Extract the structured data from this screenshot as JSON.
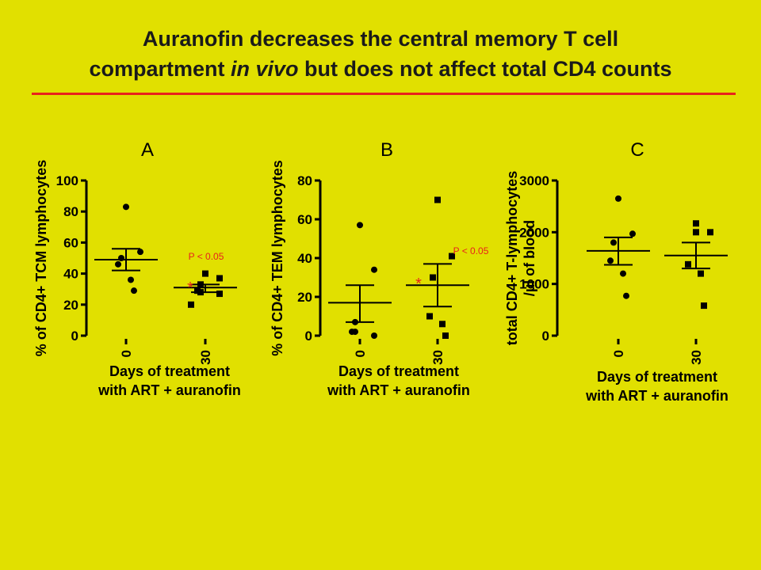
{
  "slide": {
    "title_line1": "Auranofin decreases the central memory T cell",
    "title_line2_pre": "compartment ",
    "title_line2_italic": "in vivo",
    "title_line2_post": " but does not affect total CD4 counts"
  },
  "colors": {
    "background": "#e1e000",
    "title_rule": "#e8221c",
    "annotation": "#e8221c",
    "ink": "#000000"
  },
  "chart_data": [
    {
      "type": "scatter",
      "panel_label": "A",
      "ylabel": "% of CD4+ TCM lymphocytes",
      "xlabel_line1": "Days of treatment",
      "xlabel_line2": "with ART + auranofin",
      "categories": [
        "0",
        "30"
      ],
      "ylim": [
        0,
        100
      ],
      "yticks": [
        0,
        20,
        40,
        60,
        80,
        100
      ],
      "series": [
        {
          "category": "0",
          "marker": "circle",
          "values": [
            83,
            54,
            50,
            46,
            36,
            29
          ],
          "mean": 49,
          "sem_upper": 56,
          "sem_lower": 42
        },
        {
          "category": "30",
          "marker": "square",
          "values": [
            40,
            37,
            33,
            29,
            28,
            27,
            20
          ],
          "mean": 31,
          "sem_upper": 33,
          "sem_lower": 28
        }
      ],
      "annotation": {
        "text": "P < 0.05",
        "star": "*"
      }
    },
    {
      "type": "scatter",
      "panel_label": "B",
      "ylabel": "% of CD4+ TEM lymphocytes",
      "xlabel_line1": "Days of treatment",
      "xlabel_line2": "with ART + auranofin",
      "categories": [
        "0",
        "30"
      ],
      "ylim": [
        0,
        80
      ],
      "yticks": [
        0,
        20,
        40,
        60,
        80
      ],
      "series": [
        {
          "category": "0",
          "marker": "circle",
          "values": [
            57,
            34,
            7,
            2,
            2,
            0
          ],
          "mean": 17,
          "sem_upper": 26,
          "sem_lower": 7
        },
        {
          "category": "30",
          "marker": "square",
          "values": [
            70,
            41,
            30,
            10,
            6,
            0
          ],
          "mean": 26,
          "sem_upper": 37,
          "sem_lower": 15
        }
      ],
      "annotation": {
        "text": "P < 0.05",
        "star": "*"
      }
    },
    {
      "type": "scatter",
      "panel_label": "C",
      "ylabel_line1": "total CD4+ T-lymphocytes",
      "ylabel_line2": "/µl of blood",
      "xlabel_line1": "Days of treatment",
      "xlabel_line2": "with ART + auranofin",
      "categories": [
        "0",
        "30"
      ],
      "ylim": [
        0,
        3000
      ],
      "yticks": [
        0,
        1000,
        2000,
        3000
      ],
      "series": [
        {
          "category": "0",
          "marker": "circle",
          "values": [
            2650,
            1970,
            1800,
            1450,
            1200,
            770
          ],
          "mean": 1640,
          "sem_upper": 1900,
          "sem_lower": 1370
        },
        {
          "category": "30",
          "marker": "square",
          "values": [
            2170,
            2000,
            2000,
            1380,
            1200,
            580
          ],
          "mean": 1550,
          "sem_upper": 1800,
          "sem_lower": 1300
        }
      ]
    }
  ]
}
